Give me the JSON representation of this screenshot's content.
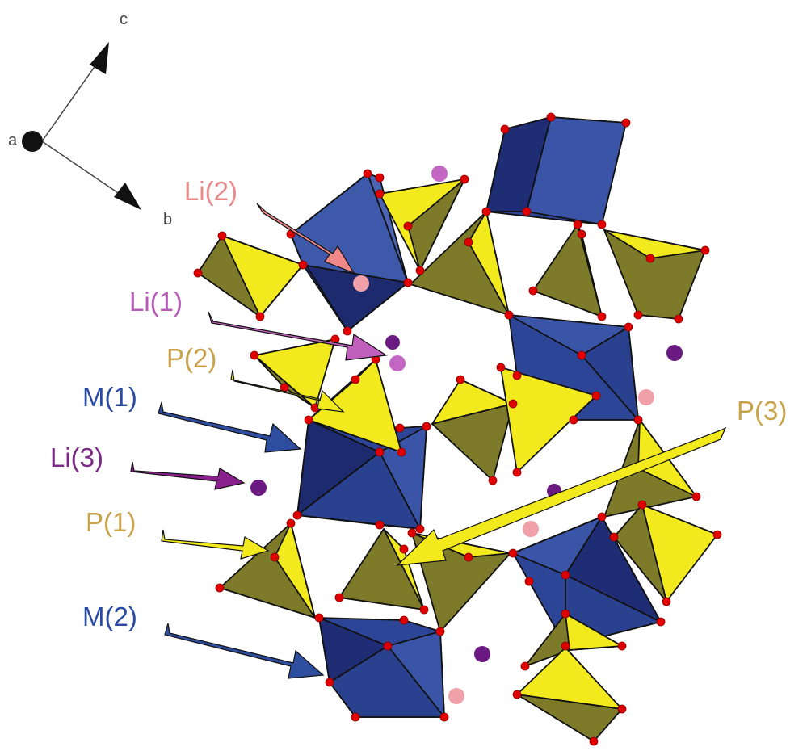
{
  "colors": {
    "octahedron_light": "#3a55a8",
    "octahedron_dark": "#1f2d75",
    "tetra_light": "#f2ea1c",
    "tetra_dark": "#7d7a2a",
    "oxygen": "#e00000",
    "li_purple": "#6a1a80",
    "li_pink": "#f0a0a8",
    "label_blue": "#2b4aa3",
    "label_gold": "#c9a24a",
    "label_pink": "#e98a8a",
    "label_violet": "#b65ab8",
    "label_purple": "#7a2a85"
  },
  "axes": {
    "c": "c",
    "b": "b",
    "a": "a"
  },
  "labels": {
    "li2": "Li(2)",
    "li1": "Li(1)",
    "p2": "P(2)",
    "m1": "M(1)",
    "li3": "Li(3)",
    "p1": "P(1)",
    "m2": "M(2)",
    "p3": "P(3)"
  }
}
